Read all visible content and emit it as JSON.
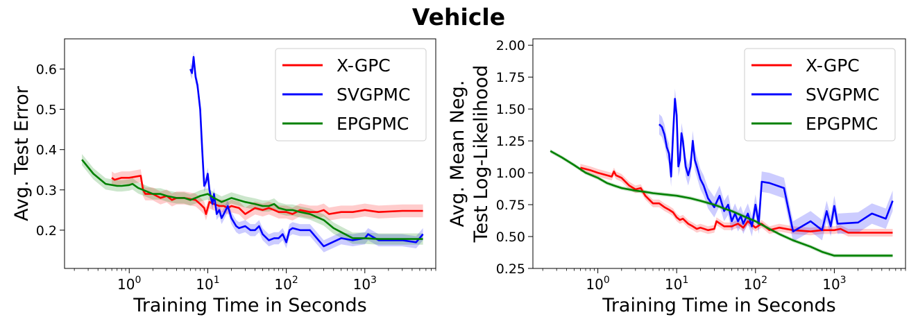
{
  "figure": {
    "title": "Vehicle"
  },
  "chart_data": [
    {
      "type": "line",
      "title": "",
      "xlabel": "Training Time in Seconds",
      "ylabel": [
        "Avg. Test Error"
      ],
      "xscale": "log",
      "xlim": [
        0.15,
        8000
      ],
      "ylim": [
        0.105,
        0.675
      ],
      "xticks": [
        {
          "value": 1,
          "base": "10",
          "exp": "0"
        },
        {
          "value": 10,
          "base": "10",
          "exp": "1"
        },
        {
          "value": 100,
          "base": "10",
          "exp": "2"
        },
        {
          "value": 1000,
          "base": "10",
          "exp": "3"
        }
      ],
      "yticks": [
        {
          "value": 0.2,
          "label": "0.2"
        },
        {
          "value": 0.3,
          "label": "0.3"
        },
        {
          "value": 0.4,
          "label": "0.4"
        },
        {
          "value": 0.5,
          "label": "0.5"
        },
        {
          "value": 0.6,
          "label": "0.6"
        }
      ],
      "legend": {
        "position": "top-right"
      },
      "series": [
        {
          "name": "X-GPC",
          "color": "#ff0000",
          "x": [
            0.6,
            0.65,
            0.8,
            1.0,
            1.4,
            1.5,
            1.6,
            2.0,
            2.5,
            3.0,
            3.5,
            4.0,
            5.0,
            7.0,
            8.0,
            9.0,
            9.5,
            10.5,
            12,
            14,
            16,
            18,
            20,
            25,
            30,
            40,
            50,
            60,
            70,
            80,
            100,
            120,
            150,
            200,
            250,
            300,
            350,
            500,
            700,
            1000,
            1500,
            3000,
            5500
          ],
          "y": [
            0.33,
            0.325,
            0.33,
            0.33,
            0.335,
            0.3,
            0.29,
            0.29,
            0.28,
            0.285,
            0.275,
            0.28,
            0.28,
            0.275,
            0.265,
            0.255,
            0.24,
            0.27,
            0.265,
            0.26,
            0.26,
            0.255,
            0.26,
            0.255,
            0.24,
            0.255,
            0.25,
            0.255,
            0.25,
            0.245,
            0.245,
            0.24,
            0.25,
            0.245,
            0.245,
            0.25,
            0.24,
            0.245,
            0.245,
            0.25,
            0.245,
            0.248,
            0.248
          ],
          "band": 0.016
        },
        {
          "name": "SVGPMC",
          "color": "#0000ff",
          "x": [
            6.0,
            6.3,
            6.6,
            7.0,
            7.4,
            8.0,
            8.5,
            9.0,
            9.5,
            10,
            10.5,
            11,
            11.5,
            12,
            13,
            14,
            15,
            16,
            18,
            20,
            23,
            25,
            30,
            35,
            40,
            45,
            50,
            60,
            70,
            80,
            90,
            100,
            110,
            120,
            150,
            200,
            300,
            500,
            700,
            1000,
            1100,
            1500,
            2000,
            3000,
            4500,
            5500
          ],
          "y": [
            0.6,
            0.59,
            0.63,
            0.58,
            0.56,
            0.5,
            0.4,
            0.31,
            0.32,
            0.34,
            0.3,
            0.28,
            0.265,
            0.29,
            0.24,
            0.25,
            0.23,
            0.24,
            0.26,
            0.23,
            0.21,
            0.205,
            0.21,
            0.2,
            0.2,
            0.21,
            0.19,
            0.175,
            0.18,
            0.18,
            0.19,
            0.17,
            0.2,
            0.205,
            0.2,
            0.2,
            0.16,
            0.18,
            0.175,
            0.18,
            0.19,
            0.175,
            0.175,
            0.175,
            0.17,
            0.19
          ],
          "band": 0.015
        },
        {
          "name": "EPGPMC",
          "color": "#008000",
          "x": [
            0.25,
            0.35,
            0.5,
            0.7,
            0.8,
            1.0,
            1.1,
            1.3,
            1.5,
            2.0,
            2.5,
            3.0,
            4.0,
            5.0,
            6.0,
            7.0,
            8.0,
            10,
            12,
            15,
            20,
            30,
            40,
            50,
            60,
            70,
            80,
            100,
            120,
            150,
            200,
            300,
            400,
            500,
            700,
            1000,
            1500,
            2000,
            3000,
            5500
          ],
          "y": [
            0.375,
            0.34,
            0.315,
            0.31,
            0.31,
            0.312,
            0.315,
            0.305,
            0.3,
            0.29,
            0.29,
            0.285,
            0.28,
            0.28,
            0.275,
            0.28,
            0.285,
            0.29,
            0.28,
            0.27,
            0.28,
            0.27,
            0.265,
            0.26,
            0.26,
            0.265,
            0.255,
            0.25,
            0.25,
            0.245,
            0.24,
            0.225,
            0.205,
            0.195,
            0.18,
            0.18,
            0.178,
            0.178,
            0.178,
            0.178
          ],
          "band": 0.014
        }
      ]
    },
    {
      "type": "line",
      "title": "",
      "xlabel": "Training Time in Seconds",
      "ylabel": [
        "Avg. Mean Neg.",
        "Test Log-Likelihood"
      ],
      "xscale": "log",
      "xlim": [
        0.15,
        8000
      ],
      "ylim": [
        0.25,
        2.05
      ],
      "xticks": [
        {
          "value": 1,
          "base": "10",
          "exp": "0"
        },
        {
          "value": 10,
          "base": "10",
          "exp": "1"
        },
        {
          "value": 100,
          "base": "10",
          "exp": "2"
        },
        {
          "value": 1000,
          "base": "10",
          "exp": "3"
        }
      ],
      "yticks": [
        {
          "value": 0.25,
          "label": "0.25"
        },
        {
          "value": 0.5,
          "label": "0.50"
        },
        {
          "value": 0.75,
          "label": "0.75"
        },
        {
          "value": 1.0,
          "label": "1.00"
        },
        {
          "value": 1.25,
          "label": "1.25"
        },
        {
          "value": 1.5,
          "label": "1.50"
        },
        {
          "value": 1.75,
          "label": "1.75"
        },
        {
          "value": 2.0,
          "label": "2.00"
        }
      ],
      "legend": {
        "position": "top-right"
      },
      "series": [
        {
          "name": "X-GPC",
          "color": "#ff0000",
          "x": [
            0.6,
            0.8,
            1.0,
            1.5,
            1.6,
            1.7,
            2.0,
            2.5,
            3.0,
            3.5,
            4.0,
            5.0,
            6.0,
            7.0,
            8.0,
            9.0,
            10,
            11,
            12,
            14,
            16,
            18,
            20,
            25,
            30,
            32,
            40,
            50,
            60,
            70,
            80,
            100,
            120,
            150,
            200,
            300,
            500,
            700,
            1000,
            1200,
            1500,
            3000,
            5500
          ],
          "y": [
            1.04,
            1.02,
            1.0,
            0.97,
            1.01,
            0.98,
            0.96,
            0.9,
            0.87,
            0.88,
            0.82,
            0.76,
            0.76,
            0.73,
            0.71,
            0.69,
            0.65,
            0.63,
            0.64,
            0.6,
            0.58,
            0.56,
            0.57,
            0.55,
            0.56,
            0.62,
            0.58,
            0.58,
            0.6,
            0.57,
            0.62,
            0.57,
            0.6,
            0.55,
            0.57,
            0.55,
            0.54,
            0.55,
            0.55,
            0.56,
            0.53,
            0.53,
            0.53
          ],
          "band": 0.03
        },
        {
          "name": "SVGPMC",
          "color": "#0000ff",
          "x": [
            6.0,
            6.5,
            7.0,
            7.5,
            8.0,
            8.5,
            9.0,
            9.5,
            10,
            10.5,
            11,
            11.5,
            12,
            13,
            14,
            15,
            16,
            17,
            18,
            20,
            22,
            25,
            30,
            35,
            40,
            45,
            50,
            55,
            60,
            65,
            70,
            80,
            90,
            100,
            110,
            120,
            150,
            230,
            300,
            500,
            700,
            800,
            900,
            1000,
            1100,
            2000,
            3000,
            4500,
            5500
          ],
          "y": [
            1.38,
            1.36,
            1.3,
            1.2,
            1.15,
            0.97,
            1.3,
            1.58,
            1.45,
            1.05,
            1.1,
            1.31,
            1.25,
            1.05,
            0.98,
            1.05,
            1.25,
            1.1,
            1.05,
            0.95,
            0.9,
            0.8,
            0.73,
            0.82,
            0.7,
            0.75,
            0.62,
            0.68,
            0.62,
            0.66,
            0.6,
            0.68,
            0.58,
            0.75,
            0.6,
            0.93,
            0.92,
            0.88,
            0.54,
            0.62,
            0.55,
            0.7,
            0.58,
            0.74,
            0.6,
            0.61,
            0.68,
            0.64,
            0.78
          ],
          "band": 0.08
        },
        {
          "name": "EPGPMC",
          "color": "#008000",
          "x": [
            0.25,
            0.35,
            0.5,
            0.7,
            1.0,
            1.3,
            1.6,
            2.0,
            3.0,
            4.0,
            5.0,
            7.0,
            10,
            15,
            20,
            30,
            40,
            50,
            70,
            100,
            150,
            200,
            300,
            500,
            700,
            1000,
            2000,
            3000,
            5500
          ],
          "y": [
            1.17,
            1.12,
            1.06,
            1.0,
            0.96,
            0.92,
            0.9,
            0.88,
            0.86,
            0.85,
            0.84,
            0.83,
            0.82,
            0.8,
            0.78,
            0.75,
            0.72,
            0.7,
            0.66,
            0.62,
            0.56,
            0.52,
            0.47,
            0.42,
            0.38,
            0.35,
            0.35,
            0.35,
            0.35
          ],
          "band": 0.015
        }
      ]
    }
  ]
}
